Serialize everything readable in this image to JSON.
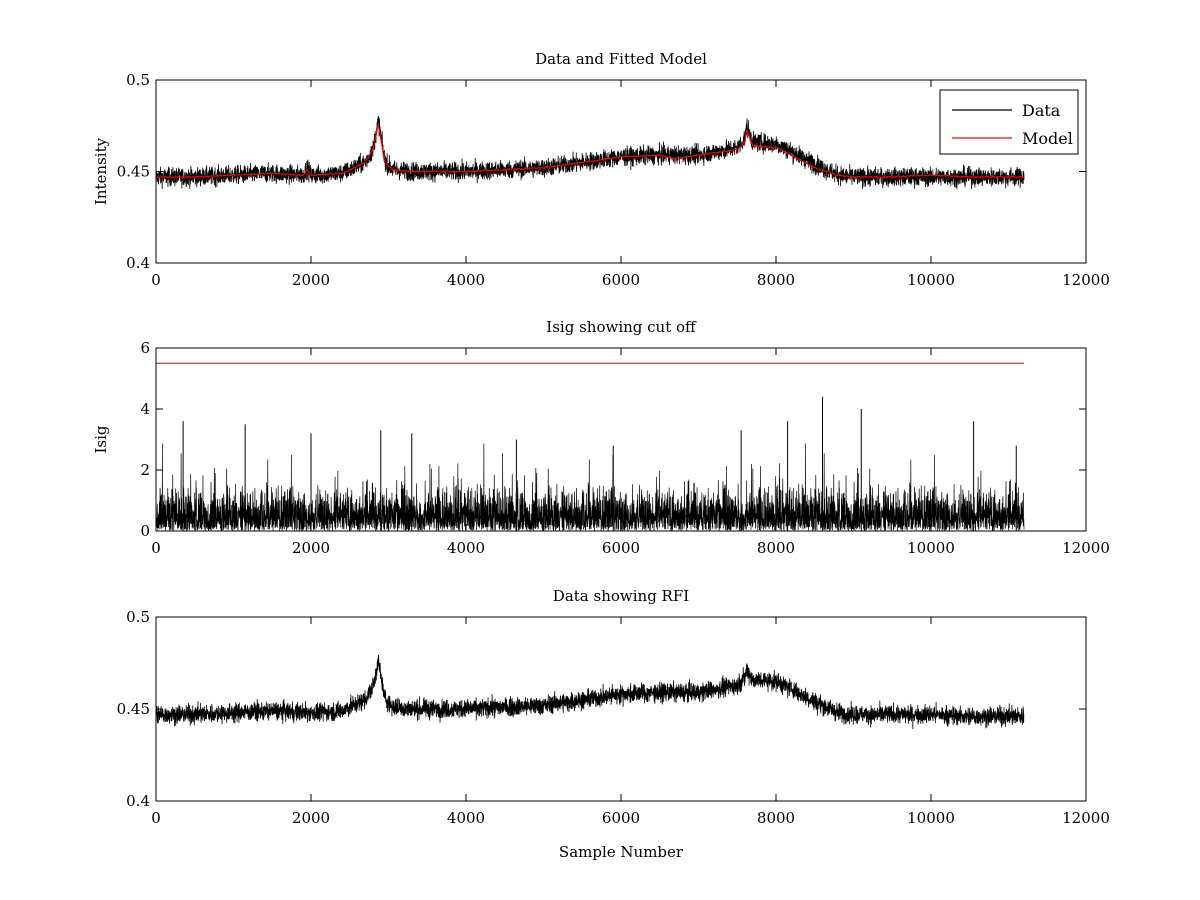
{
  "chart_data": [
    {
      "type": "line",
      "title": "Data and Fitted Model",
      "xlabel": "",
      "ylabel": "Intensity",
      "xlim": [
        0,
        12000
      ],
      "ylim": [
        0.4,
        0.5
      ],
      "xticks": [
        "0",
        "2000",
        "4000",
        "6000",
        "8000",
        "10000",
        "12000"
      ],
      "yticks": [
        "0.4",
        "0.45",
        "0.5"
      ],
      "grid": false,
      "legend": "top-right",
      "series": [
        {
          "name": "Data",
          "color": "#000000",
          "noise": 0.0045,
          "x": [
            0,
            500,
            1000,
            1500,
            1900,
            1950,
            2000,
            2400,
            2700,
            2800,
            2870,
            2900,
            2950,
            3050,
            3300,
            4000,
            5000,
            5500,
            6000,
            6500,
            7000,
            7500,
            7600,
            7620,
            7700,
            8000,
            8200,
            8500,
            8800,
            9000,
            9500,
            10000,
            10500,
            11200
          ],
          "y": [
            0.447,
            0.447,
            0.448,
            0.449,
            0.448,
            0.452,
            0.448,
            0.449,
            0.455,
            0.462,
            0.478,
            0.47,
            0.456,
            0.451,
            0.45,
            0.45,
            0.452,
            0.455,
            0.458,
            0.459,
            0.459,
            0.463,
            0.468,
            0.475,
            0.466,
            0.465,
            0.461,
            0.454,
            0.448,
            0.447,
            0.447,
            0.447,
            0.447,
            0.447
          ]
        },
        {
          "name": "Model",
          "color": "#ff0000",
          "noise": 0,
          "x": [
            0,
            500,
            1000,
            1500,
            1900,
            1950,
            2000,
            2400,
            2700,
            2800,
            2870,
            2900,
            2950,
            3050,
            3300,
            4000,
            5000,
            5500,
            6000,
            6500,
            6700,
            7000,
            7500,
            7600,
            7620,
            7700,
            8000,
            8200,
            8500,
            8800,
            9000,
            9500,
            10000,
            10500,
            11200
          ],
          "y": [
            0.447,
            0.447,
            0.448,
            0.449,
            0.448,
            0.451,
            0.448,
            0.449,
            0.455,
            0.462,
            0.476,
            0.468,
            0.455,
            0.451,
            0.45,
            0.45,
            0.452,
            0.455,
            0.458,
            0.459,
            0.457,
            0.459,
            0.462,
            0.466,
            0.473,
            0.464,
            0.463,
            0.459,
            0.452,
            0.448,
            0.447,
            0.447,
            0.448,
            0.447,
            0.447
          ]
        }
      ]
    },
    {
      "type": "line",
      "title": "Isig showing cut off",
      "xlabel": "",
      "ylabel": "Isig",
      "xlim": [
        0,
        12000
      ],
      "ylim": [
        0,
        6
      ],
      "xticks": [
        "0",
        "2000",
        "4000",
        "6000",
        "8000",
        "10000",
        "12000"
      ],
      "yticks": [
        "0",
        "2",
        "4",
        "6"
      ],
      "grid": false,
      "cutoff": {
        "value": 5.5,
        "x": [
          0,
          11200
        ],
        "color": "#ff0000"
      },
      "series": [
        {
          "color": "#000000",
          "x_range": [
            0,
            11200
          ],
          "baseline_max": 1.6,
          "spikes": [
            {
              "x": 350,
              "y": 3.6
            },
            {
              "x": 1150,
              "y": 3.5
            },
            {
              "x": 2000,
              "y": 3.2
            },
            {
              "x": 2900,
              "y": 3.3
            },
            {
              "x": 3300,
              "y": 3.2
            },
            {
              "x": 4650,
              "y": 3.0
            },
            {
              "x": 5900,
              "y": 2.8
            },
            {
              "x": 7550,
              "y": 3.3
            },
            {
              "x": 8150,
              "y": 3.6
            },
            {
              "x": 8600,
              "y": 4.4
            },
            {
              "x": 9100,
              "y": 4.0
            },
            {
              "x": 10550,
              "y": 3.6
            },
            {
              "x": 11100,
              "y": 2.8
            }
          ]
        }
      ]
    },
    {
      "type": "line",
      "title": "Data showing RFI",
      "xlabel": "Sample Number",
      "ylabel": "",
      "xlim": [
        0,
        12000
      ],
      "ylim": [
        0.4,
        0.5
      ],
      "xticks": [
        "0",
        "2000",
        "4000",
        "6000",
        "8000",
        "10000",
        "12000"
      ],
      "yticks": [
        "0.4",
        "0.45",
        "0.5"
      ],
      "grid": false,
      "series": [
        {
          "color": "#000000",
          "noise": 0.0045,
          "x": [
            0,
            500,
            1000,
            1500,
            2000,
            2400,
            2700,
            2800,
            2870,
            2900,
            2950,
            3050,
            3300,
            4000,
            5000,
            5500,
            6000,
            6500,
            7000,
            7500,
            7600,
            7620,
            7700,
            8000,
            8200,
            8500,
            8800,
            9000,
            9500,
            10000,
            10500,
            11200
          ],
          "y": [
            0.447,
            0.447,
            0.448,
            0.449,
            0.448,
            0.449,
            0.455,
            0.462,
            0.476,
            0.468,
            0.456,
            0.451,
            0.45,
            0.45,
            0.452,
            0.455,
            0.458,
            0.459,
            0.459,
            0.463,
            0.467,
            0.472,
            0.466,
            0.465,
            0.461,
            0.454,
            0.448,
            0.447,
            0.447,
            0.447,
            0.446,
            0.446
          ]
        }
      ]
    }
  ]
}
